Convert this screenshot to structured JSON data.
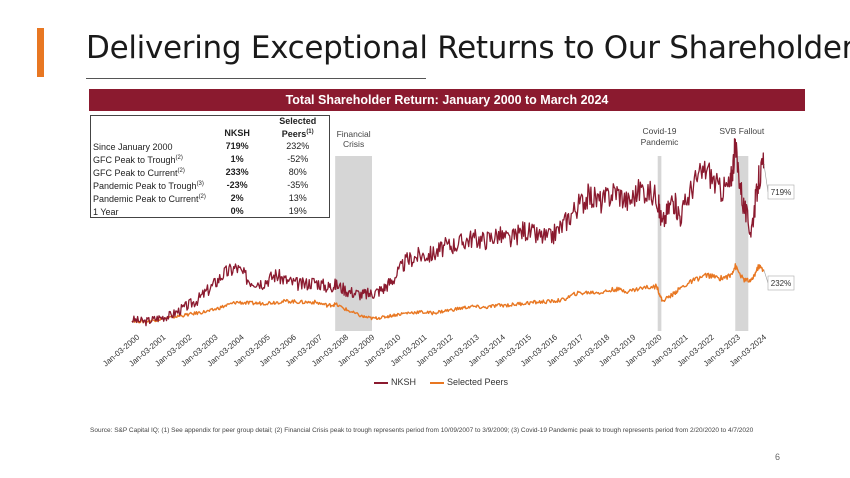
{
  "page": {
    "title": "Delivering Exceptional Returns to Our Shareholders",
    "banner": "Total Shareholder Return: January 2000 to March 2024",
    "page_number": "6",
    "source_note": "Source: S&P Capital IQ; (1) See appendix for peer group detail; (2) Financial Crisis peak to trough represents period from 10/09/2007 to 3/9/2009; (3) Covid-19 Pandemic peak to trough represents period from 2/20/2020 to 4/7/2020"
  },
  "table": {
    "col1": "NKSH",
    "col2_line1": "Selected",
    "col2_line2": "Peers",
    "col2_sup": "(1)",
    "rows": [
      {
        "label": "Since January 2000",
        "sup": "",
        "nksh": "719%",
        "peers": "232%"
      },
      {
        "label": "GFC Peak to Trough",
        "sup": "(2)",
        "nksh": "1%",
        "peers": "-52%"
      },
      {
        "label": "GFC Peak to Current",
        "sup": "(2)",
        "nksh": "233%",
        "peers": "80%"
      },
      {
        "label": "Pandemic Peak to Trough",
        "sup": "(3)",
        "nksh": "-23%",
        "peers": "-35%"
      },
      {
        "label": "Pandemic Peak to Current",
        "sup": "(2)",
        "nksh": "2%",
        "peers": "13%"
      },
      {
        "label": "1 Year",
        "sup": "",
        "nksh": "0%",
        "peers": "19%"
      }
    ]
  },
  "colors": {
    "nksh": "#8B1A2F",
    "peers": "#E87722",
    "shade": "#d6d6d6",
    "accent": "#E87722"
  },
  "chart_data": {
    "type": "line",
    "title": "Total Shareholder Return: January 2000 to March 2024",
    "xlabel": "",
    "ylabel": "",
    "xlim": [
      2000.0,
      2024.2
    ],
    "ylim": [
      -20,
      900
    ],
    "x_tick_labels": [
      "Jan-03-2000",
      "Jan-03-2001",
      "Jan-03-2002",
      "Jan-03-2003",
      "Jan-03-2004",
      "Jan-03-2005",
      "Jan-03-2006",
      "Jan-03-2007",
      "Jan-03-2008",
      "Jan-03-2009",
      "Jan-03-2010",
      "Jan-03-2011",
      "Jan-03-2012",
      "Jan-03-2013",
      "Jan-03-2014",
      "Jan-03-2015",
      "Jan-03-2016",
      "Jan-03-2017",
      "Jan-03-2018",
      "Jan-03-2019",
      "Jan-03-2020",
      "Jan-03-2021",
      "Jan-03-2022",
      "Jan-03-2023",
      "Jan-03-2024"
    ],
    "x_tick_values": [
      2000,
      2001,
      2002,
      2003,
      2004,
      2005,
      2006,
      2007,
      2008,
      2009,
      2010,
      2011,
      2012,
      2013,
      2014,
      2015,
      2016,
      2017,
      2018,
      2019,
      2020,
      2021,
      2022,
      2023,
      2024
    ],
    "series": [
      {
        "name": "NKSH",
        "end_label": "719%",
        "x": [
          2000,
          2000.5,
          2001,
          2001.5,
          2002,
          2002.5,
          2003,
          2003.5,
          2004,
          2004.5,
          2005,
          2005.5,
          2006,
          2006.5,
          2007,
          2007.5,
          2007.8,
          2008.3,
          2008.8,
          2009.2,
          2009.6,
          2010,
          2010.5,
          2011,
          2011.5,
          2012,
          2012.5,
          2013,
          2013.5,
          2014,
          2014.5,
          2015,
          2015.5,
          2016,
          2016.5,
          2017,
          2017.5,
          2018,
          2018.5,
          2019,
          2019.5,
          2020.1,
          2020.3,
          2020.7,
          2021,
          2021.5,
          2022,
          2022.5,
          2022.9,
          2023.1,
          2023.4,
          2023.7,
          2024,
          2024.2
        ],
        "values": [
          5,
          -5,
          12,
          25,
          60,
          95,
          150,
          215,
          245,
          185,
          175,
          210,
          180,
          165,
          180,
          155,
          165,
          135,
          120,
          125,
          145,
          190,
          275,
          300,
          305,
          340,
          355,
          380,
          370,
          395,
          370,
          420,
          390,
          380,
          440,
          520,
          575,
          545,
          600,
          545,
          610,
          570,
          440,
          560,
          480,
          630,
          700,
          600,
          620,
          790,
          540,
          410,
          650,
          719
        ]
      },
      {
        "name": "Selected Peers",
        "end_label": "232%",
        "x": [
          2000,
          2000.5,
          2001,
          2001.5,
          2002,
          2002.5,
          2003,
          2003.5,
          2004,
          2004.5,
          2005,
          2005.5,
          2006,
          2006.5,
          2007,
          2007.5,
          2007.8,
          2008.3,
          2008.8,
          2009.2,
          2009.6,
          2010,
          2010.5,
          2011,
          2011.5,
          2012,
          2012.5,
          2013,
          2013.5,
          2014,
          2014.5,
          2015,
          2015.5,
          2016,
          2016.5,
          2017,
          2017.5,
          2018,
          2018.5,
          2019,
          2019.5,
          2020.1,
          2020.3,
          2020.7,
          2021,
          2021.5,
          2022,
          2022.5,
          2022.9,
          2023.1,
          2023.4,
          2023.7,
          2024,
          2024.2
        ],
        "values": [
          0,
          -5,
          5,
          15,
          25,
          35,
          45,
          65,
          85,
          80,
          80,
          85,
          90,
          85,
          85,
          70,
          75,
          45,
          20,
          10,
          15,
          25,
          35,
          40,
          35,
          45,
          55,
          65,
          60,
          70,
          72,
          80,
          85,
          88,
          95,
          125,
          130,
          130,
          145,
          135,
          150,
          158,
          90,
          120,
          150,
          185,
          210,
          195,
          205,
          250,
          190,
          180,
          250,
          232
        ]
      }
    ],
    "annotations": [
      {
        "text_line1": "Financial",
        "text_line2": "Crisis",
        "x_start": 2007.78,
        "x_end": 2009.19
      },
      {
        "text_line1": "Covid-19",
        "text_line2": "Pandemic",
        "x_start": 2020.13,
        "x_end": 2020.27
      },
      {
        "text_line1": "SVB Fallout",
        "text_line2": "",
        "x_start": 2023.1,
        "x_end": 2023.6
      }
    ],
    "legend": [
      "NKSH",
      "Selected Peers"
    ],
    "legend_position": "bottom-center"
  }
}
